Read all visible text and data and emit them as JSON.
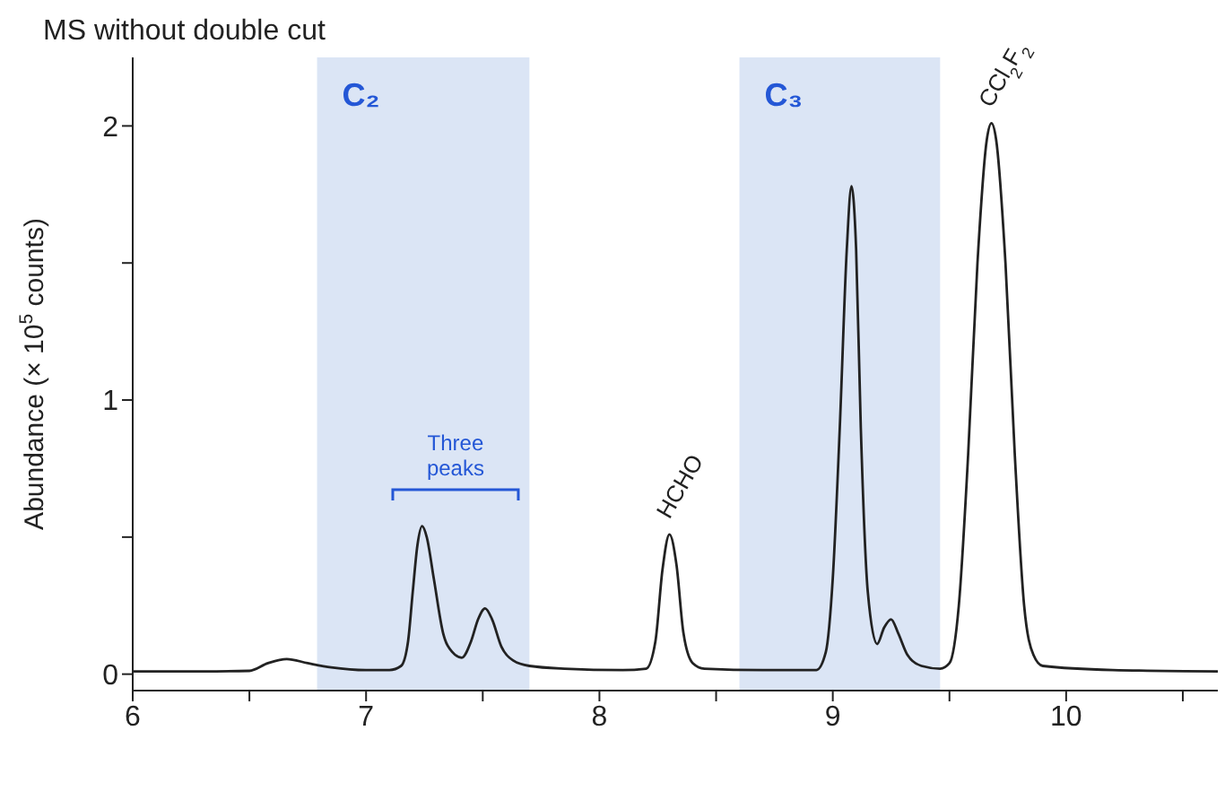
{
  "chart_data": {
    "type": "line",
    "title": "MS without double cut",
    "ylabel": "Abundance (× 10$^{5}$ counts)",
    "x": [
      6.0,
      6.3,
      6.5,
      6.58,
      6.66,
      6.75,
      6.85,
      7.0,
      7.1,
      7.15,
      7.18,
      7.2,
      7.22,
      7.24,
      7.26,
      7.29,
      7.33,
      7.37,
      7.41,
      7.45,
      7.48,
      7.51,
      7.54,
      7.58,
      7.63,
      7.7,
      7.85,
      8.1,
      8.2,
      8.24,
      8.27,
      8.3,
      8.33,
      8.36,
      8.4,
      8.45,
      8.7,
      8.93,
      8.97,
      9.0,
      9.03,
      9.06,
      9.08,
      9.1,
      9.12,
      9.15,
      9.19,
      9.22,
      9.25,
      9.28,
      9.32,
      9.38,
      9.46,
      9.5,
      9.54,
      9.58,
      9.62,
      9.66,
      9.68,
      9.7,
      9.74,
      9.78,
      9.82,
      9.86,
      9.9,
      10.2,
      10.65
    ],
    "series": [
      {
        "color": "#222222",
        "values": [
          0.01,
          0.01,
          0.012,
          0.04,
          0.055,
          0.04,
          0.025,
          0.015,
          0.015,
          0.03,
          0.12,
          0.3,
          0.47,
          0.54,
          0.5,
          0.35,
          0.15,
          0.08,
          0.06,
          0.12,
          0.2,
          0.24,
          0.2,
          0.1,
          0.05,
          0.03,
          0.02,
          0.015,
          0.02,
          0.12,
          0.38,
          0.51,
          0.4,
          0.15,
          0.04,
          0.02,
          0.015,
          0.015,
          0.08,
          0.35,
          0.9,
          1.55,
          1.78,
          1.55,
          0.9,
          0.3,
          0.11,
          0.17,
          0.2,
          0.15,
          0.07,
          0.03,
          0.02,
          0.04,
          0.25,
          0.8,
          1.5,
          1.95,
          2.01,
          1.95,
          1.5,
          0.8,
          0.25,
          0.07,
          0.03,
          0.015,
          0.01
        ]
      }
    ],
    "xlim": [
      6,
      10.65
    ],
    "ylim": [
      -0.06,
      2.25
    ],
    "xticks": [
      6,
      {
        "value": 6.5,
        "label": null
      },
      7,
      {
        "value": 7.5,
        "label": null
      },
      8,
      {
        "value": 8.5,
        "label": null
      },
      9,
      {
        "value": 9.5,
        "label": null
      },
      10,
      {
        "value": 10.5,
        "label": null
      }
    ],
    "yticks": [
      0,
      {
        "value": 0.5,
        "label": null
      },
      1,
      {
        "value": 1.5,
        "label": null
      },
      2
    ],
    "bands": [
      {
        "axis": "x",
        "from": 6.79,
        "to": 7.7,
        "label": "C₂",
        "color": "#dbe5f5"
      },
      {
        "axis": "x",
        "from": 8.6,
        "to": 9.46,
        "label": "C₃",
        "color": "#dbe5f5"
      }
    ],
    "annotations": [
      "Three peaks",
      {
        "text": "HCHO",
        "x": 8.3,
        "y": 0.51
      },
      {
        "text": "CCl$_{2}$F$_{2}$",
        "x": 9.68,
        "y": 2.01
      }
    ],
    "grid": false,
    "legend": false,
    "marker": "none",
    "line_style": "solid"
  }
}
